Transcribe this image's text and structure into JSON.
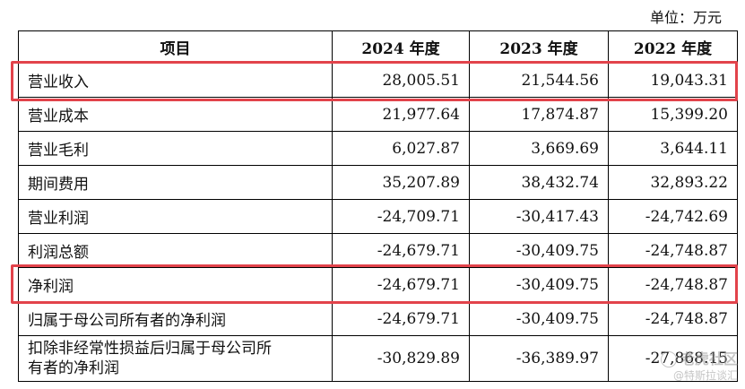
{
  "unit_label": "单位：万元",
  "table": {
    "headers": [
      "项目",
      "2024 年度",
      "2023 年度",
      "2022 年度"
    ],
    "rows": [
      {
        "label": "营业收入",
        "values": [
          "28,005.51",
          "21,544.56",
          "19,043.31"
        ],
        "highlighted": true
      },
      {
        "label": "营业成本",
        "values": [
          "21,977.64",
          "17,874.87",
          "15,399.20"
        ]
      },
      {
        "label": "营业毛利",
        "values": [
          "6,027.87",
          "3,669.69",
          "3,644.11"
        ]
      },
      {
        "label": "期间费用",
        "values": [
          "35,207.89",
          "38,432.74",
          "32,893.22"
        ]
      },
      {
        "label": "营业利润",
        "values": [
          "-24,709.71",
          "-30,417.43",
          "-24,742.69"
        ]
      },
      {
        "label": "利润总额",
        "values": [
          "-24,679.71",
          "-30,409.75",
          "-24,748.87"
        ]
      },
      {
        "label": "净利润",
        "values": [
          "-24,679.71",
          "-30,409.75",
          "-24,748.87"
        ],
        "highlighted": true
      },
      {
        "label": "归属于母公司所有者的净利润",
        "values": [
          "-24,679.71",
          "-30,409.75",
          "-24,748.87"
        ]
      },
      {
        "label_line1": "扣除非经常性损益后归属于母公司所",
        "label_line2": "有者的净利润",
        "values": [
          "-30,829.89",
          "-36,389.97",
          "-27,868.15"
        ]
      }
    ]
  },
  "highlight_color": "#e2434b",
  "watermark": {
    "line1": "老虎社区",
    "line2": "@特斯拉谈汇"
  }
}
